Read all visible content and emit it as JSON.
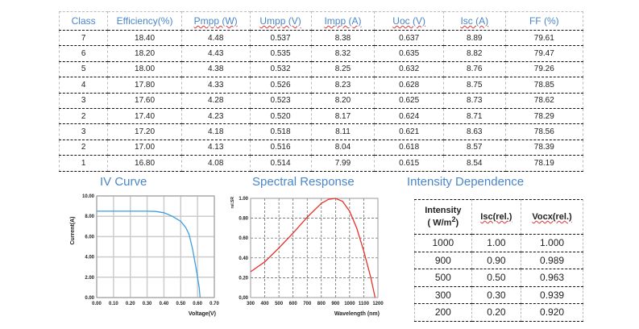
{
  "main_table": {
    "headers": [
      "Class",
      "Efficiency(%)",
      "Pmpp (W)",
      "Umpp (V)",
      "Impp (A)",
      "Uoc (V)",
      "Isc (A)",
      "FF (%)"
    ],
    "rows": [
      [
        "7",
        "18.40",
        "4.48",
        "0.537",
        "8.38",
        "0.637",
        "8.89",
        "79.61"
      ],
      [
        "6",
        "18.20",
        "4.43",
        "0.535",
        "8.32",
        "0.635",
        "8.82",
        "79.47"
      ],
      [
        "5",
        "18.00",
        "4.38",
        "0.532",
        "8.25",
        "0.632",
        "8.76",
        "79.26"
      ],
      [
        "4",
        "17.80",
        "4.33",
        "0.526",
        "8.23",
        "0.628",
        "8.75",
        "78.85"
      ],
      [
        "3",
        "17.60",
        "4.28",
        "0.523",
        "8.20",
        "0.625",
        "8.73",
        "78.62"
      ],
      [
        "2",
        "17.40",
        "4.23",
        "0.520",
        "8.17",
        "0.624",
        "8.71",
        "78.29"
      ],
      [
        "3",
        "17.20",
        "4.18",
        "0.518",
        "8.11",
        "0.621",
        "8.63",
        "78.56"
      ],
      [
        "2",
        "17.00",
        "4.13",
        "0.516",
        "8.04",
        "0.618",
        "8.57",
        "78.39"
      ],
      [
        "1",
        "16.80",
        "4.08",
        "0.514",
        "7.99",
        "0.615",
        "8.54",
        "78.19"
      ]
    ]
  },
  "chart_data": [
    {
      "type": "line",
      "title": "IV Curve",
      "xlabel": "Voltage(V)",
      "ylabel": "Current(A)",
      "xlim": [
        0,
        0.7
      ],
      "ylim": [
        0,
        10
      ],
      "grid": true,
      "color": "#3b9ee0",
      "xticks": [
        "0.00",
        "0.10",
        "0.20",
        "0.30",
        "0.40",
        "0.50",
        "0.60",
        "0.70"
      ],
      "yticks": [
        "0.00",
        "2.00",
        "4.00",
        "6.00",
        "8.00",
        "10.00"
      ],
      "x": [
        0,
        0.1,
        0.2,
        0.3,
        0.35,
        0.4,
        0.45,
        0.5,
        0.53,
        0.55,
        0.57,
        0.59,
        0.61,
        0.615
      ],
      "y": [
        8.5,
        8.5,
        8.5,
        8.5,
        8.48,
        8.35,
        8.0,
        7.5,
        6.9,
        6.2,
        4.8,
        3.0,
        1.0,
        0
      ]
    },
    {
      "type": "line",
      "title": "Spectral Response",
      "xlabel": "Wavelength (nm)",
      "ylabel": "rel.SR",
      "xlim": [
        300,
        1200
      ],
      "ylim": [
        0,
        1
      ],
      "grid": true,
      "color": "#e8312a",
      "xticks": [
        "300",
        "400",
        "500",
        "600",
        "700",
        "800",
        "900",
        "1000",
        "1100",
        "1200"
      ],
      "yticks": [
        "0,00",
        "0.20",
        "0.40",
        "0.60",
        "0.80",
        "1.00"
      ],
      "x": [
        300,
        400,
        500,
        600,
        700,
        800,
        850,
        900,
        950,
        1000,
        1050,
        1100,
        1150,
        1180
      ],
      "y": [
        0.26,
        0.36,
        0.5,
        0.65,
        0.81,
        0.95,
        0.99,
        1.0,
        0.97,
        0.87,
        0.7,
        0.47,
        0.2,
        0
      ]
    }
  ],
  "intensity": {
    "title": "Intensity Dependence",
    "headers": [
      "Intensity",
      "( W/m",
      "2",
      ")",
      "Isc(rel.)",
      "Vocx(rel.)"
    ],
    "rows": [
      [
        "1000",
        "1.00",
        "1.000"
      ],
      [
        "900",
        "0.90",
        "0.989"
      ],
      [
        "500",
        "0.50",
        "0.963"
      ],
      [
        "300",
        "0.30",
        "0.939"
      ],
      [
        "200",
        "0.20",
        "0.920"
      ]
    ]
  }
}
